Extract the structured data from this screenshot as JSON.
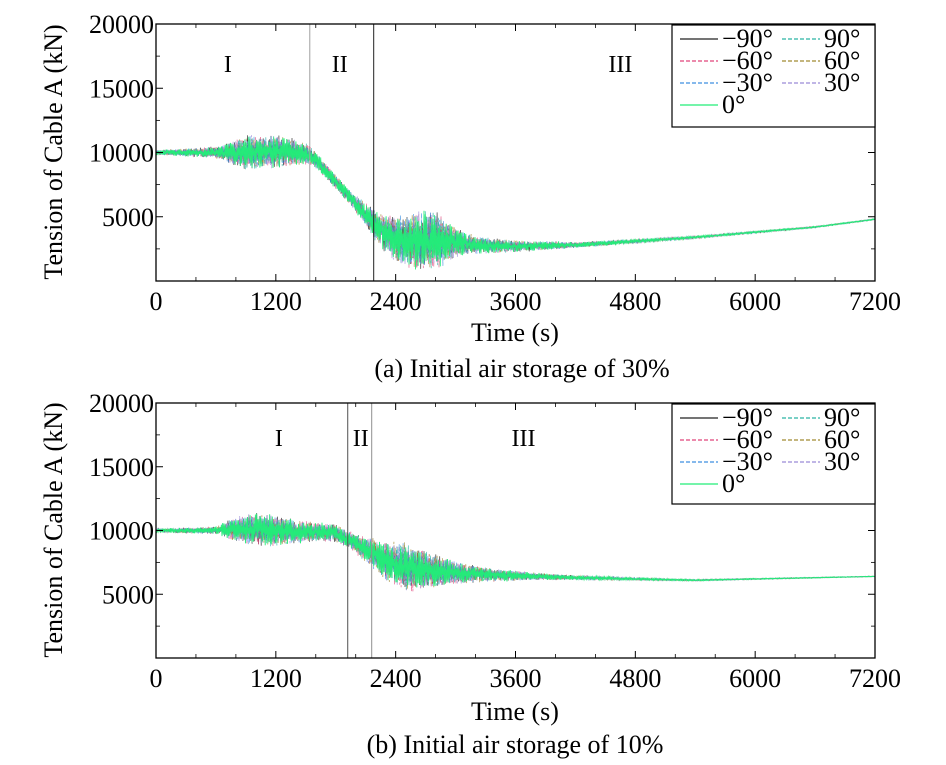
{
  "chart_data": [
    {
      "type": "line",
      "caption": "(a) Initial air storage of 30%",
      "xlabel": "Time (s)",
      "ylabel": "Tension of Cable A (kN)",
      "xlim": [
        0,
        7200
      ],
      "ylim": [
        0,
        20000
      ],
      "xticks": [
        0,
        1200,
        2400,
        3600,
        4800,
        6000,
        7200
      ],
      "yticks": [
        5000,
        10000,
        15000,
        20000
      ],
      "xtick_labels": [
        "0",
        "1200",
        "2400",
        "3600",
        "4800",
        "6000",
        "7200"
      ],
      "ytick_labels": [
        "5000",
        "10000",
        "15000",
        "20000"
      ],
      "phases": [
        {
          "label": "I",
          "x_center": 720
        },
        {
          "label": "II",
          "x_center": 1840
        },
        {
          "label": "III",
          "x_center": 4650
        }
      ],
      "phase_boundaries": [
        {
          "x": 1540,
          "color": "#a0a0a0"
        },
        {
          "x": 2180,
          "color": "#202020"
        }
      ],
      "legend": {
        "position": "top-right",
        "columns": 2
      },
      "series": [
        {
          "name": "−90°",
          "color": "#222222",
          "dash": "solid"
        },
        {
          "name": "90°",
          "color": "#2ab3a5",
          "dash": "dashed"
        },
        {
          "name": "−60°",
          "color": "#e0457b",
          "dash": "dashed"
        },
        {
          "name": "60°",
          "color": "#a08a32",
          "dash": "dashed"
        },
        {
          "name": "−30°",
          "color": "#3d8fe0",
          "dash": "dashed"
        },
        {
          "name": "30°",
          "color": "#9a8ad8",
          "dash": "dashed"
        },
        {
          "name": "0°",
          "color": "#22ee77",
          "dash": "solid"
        }
      ],
      "envelope": {
        "x": [
          0,
          600,
          900,
          1200,
          1500,
          1600,
          1800,
          2000,
          2200,
          2400,
          2600,
          2800,
          3000,
          3200,
          3600,
          4200,
          4800,
          5400,
          6000,
          6600,
          7200
        ],
        "mean": [
          10000,
          10000,
          10000,
          10100,
          9900,
          9400,
          7700,
          6000,
          4300,
          3200,
          3200,
          3200,
          3000,
          2800,
          2700,
          2800,
          3100,
          3400,
          3800,
          4200,
          4800
        ],
        "amplitude": [
          200,
          450,
          1300,
          1300,
          900,
          650,
          550,
          650,
          1200,
          1800,
          2300,
          2300,
          1200,
          700,
          450,
          250,
          150,
          100,
          80,
          60,
          50
        ]
      }
    },
    {
      "type": "line",
      "caption": "(b) Initial air storage of 10%",
      "xlabel": "Time (s)",
      "ylabel": "Tension of Cable A (kN)",
      "xlim": [
        0,
        7200
      ],
      "ylim": [
        0,
        20000
      ],
      "xticks": [
        0,
        1200,
        2400,
        3600,
        4800,
        6000,
        7200
      ],
      "yticks": [
        5000,
        10000,
        15000,
        20000
      ],
      "xtick_labels": [
        "0",
        "1200",
        "2400",
        "3600",
        "4800",
        "6000",
        "7200"
      ],
      "ytick_labels": [
        "5000",
        "10000",
        "15000",
        "20000"
      ],
      "phases": [
        {
          "label": "I",
          "x_center": 1230
        },
        {
          "label": "II",
          "x_center": 2050
        },
        {
          "label": "III",
          "x_center": 3680
        }
      ],
      "phase_boundaries": [
        {
          "x": 1920,
          "color": "#505050"
        },
        {
          "x": 2160,
          "color": "#909090"
        }
      ],
      "legend": {
        "position": "top-right",
        "columns": 2
      },
      "series": [
        {
          "name": "−90°",
          "color": "#222222",
          "dash": "solid"
        },
        {
          "name": "90°",
          "color": "#2ab3a5",
          "dash": "dashed"
        },
        {
          "name": "−60°",
          "color": "#e0457b",
          "dash": "dashed"
        },
        {
          "name": "60°",
          "color": "#a08a32",
          "dash": "dashed"
        },
        {
          "name": "−30°",
          "color": "#3d8fe0",
          "dash": "dashed"
        },
        {
          "name": "30°",
          "color": "#9a8ad8",
          "dash": "dashed"
        },
        {
          "name": "0°",
          "color": "#22ee77",
          "dash": "solid"
        }
      ],
      "envelope": {
        "x": [
          0,
          600,
          800,
          1000,
          1200,
          1400,
          1600,
          1800,
          1920,
          2100,
          2300,
          2500,
          2700,
          3000,
          3400,
          3800,
          4200,
          4800,
          5400,
          6000,
          6600,
          7200
        ],
        "mean": [
          10000,
          10000,
          10100,
          10100,
          10000,
          9900,
          9900,
          9800,
          9300,
          8500,
          7600,
          7100,
          6900,
          6700,
          6500,
          6400,
          6300,
          6200,
          6100,
          6200,
          6300,
          6400
        ],
        "amplitude": [
          150,
          300,
          1000,
          1300,
          1200,
          900,
          800,
          700,
          700,
          1000,
          1500,
          1900,
          1500,
          900,
          500,
          300,
          180,
          100,
          70,
          50,
          40,
          30
        ]
      }
    }
  ]
}
